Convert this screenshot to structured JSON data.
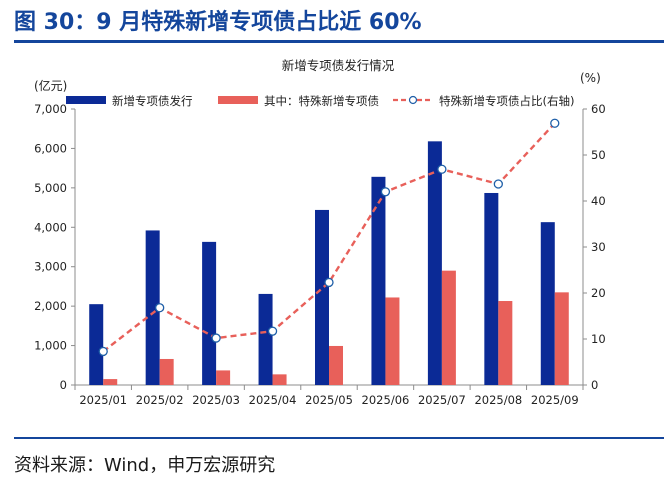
{
  "figure": {
    "title": "图 30：9 月特殊新增专项债占比近 60%",
    "source": "资料来源：Wind，申万宏源研究"
  },
  "colors": {
    "brand": "#14469c",
    "bar_total": "#0b2a96",
    "bar_special": "#e8605a",
    "line_share": "#e8605a",
    "marker_edge": "#1f5fa8"
  },
  "chart_data": {
    "type": "bar",
    "title": "新增专项债发行情况",
    "categories": [
      "2025/01",
      "2025/02",
      "2025/03",
      "2025/04",
      "2025/05",
      "2025/06",
      "2025/07",
      "2025/08",
      "2025/09"
    ],
    "series": [
      {
        "name": "新增专项债发行",
        "type": "bar",
        "axis": "left",
        "values": [
          2050,
          3920,
          3630,
          2310,
          4440,
          5280,
          6180,
          4870,
          4130
        ]
      },
      {
        "name": "其中：特殊新增专项债",
        "type": "bar",
        "axis": "left",
        "values": [
          150,
          660,
          370,
          270,
          990,
          2220,
          2900,
          2130,
          2350
        ]
      },
      {
        "name": "特殊新增专项债占比(右轴)",
        "type": "line",
        "axis": "right",
        "style": "dashed",
        "values": [
          7.3,
          16.8,
          10.2,
          11.7,
          22.3,
          42.0,
          46.9,
          43.7,
          56.9
        ]
      }
    ],
    "ylabel_left": "(亿元)",
    "ylabel_right": "(%)",
    "ylim_left": [
      0,
      7000
    ],
    "ylim_right": [
      0,
      60
    ],
    "yticks_left": [
      "0",
      "1,000",
      "2,000",
      "3,000",
      "4,000",
      "5,000",
      "6,000",
      "7,000"
    ],
    "yticks_right": [
      "0",
      "10",
      "20",
      "30",
      "40",
      "50",
      "60"
    ],
    "grid": false,
    "legend_position": "top"
  }
}
